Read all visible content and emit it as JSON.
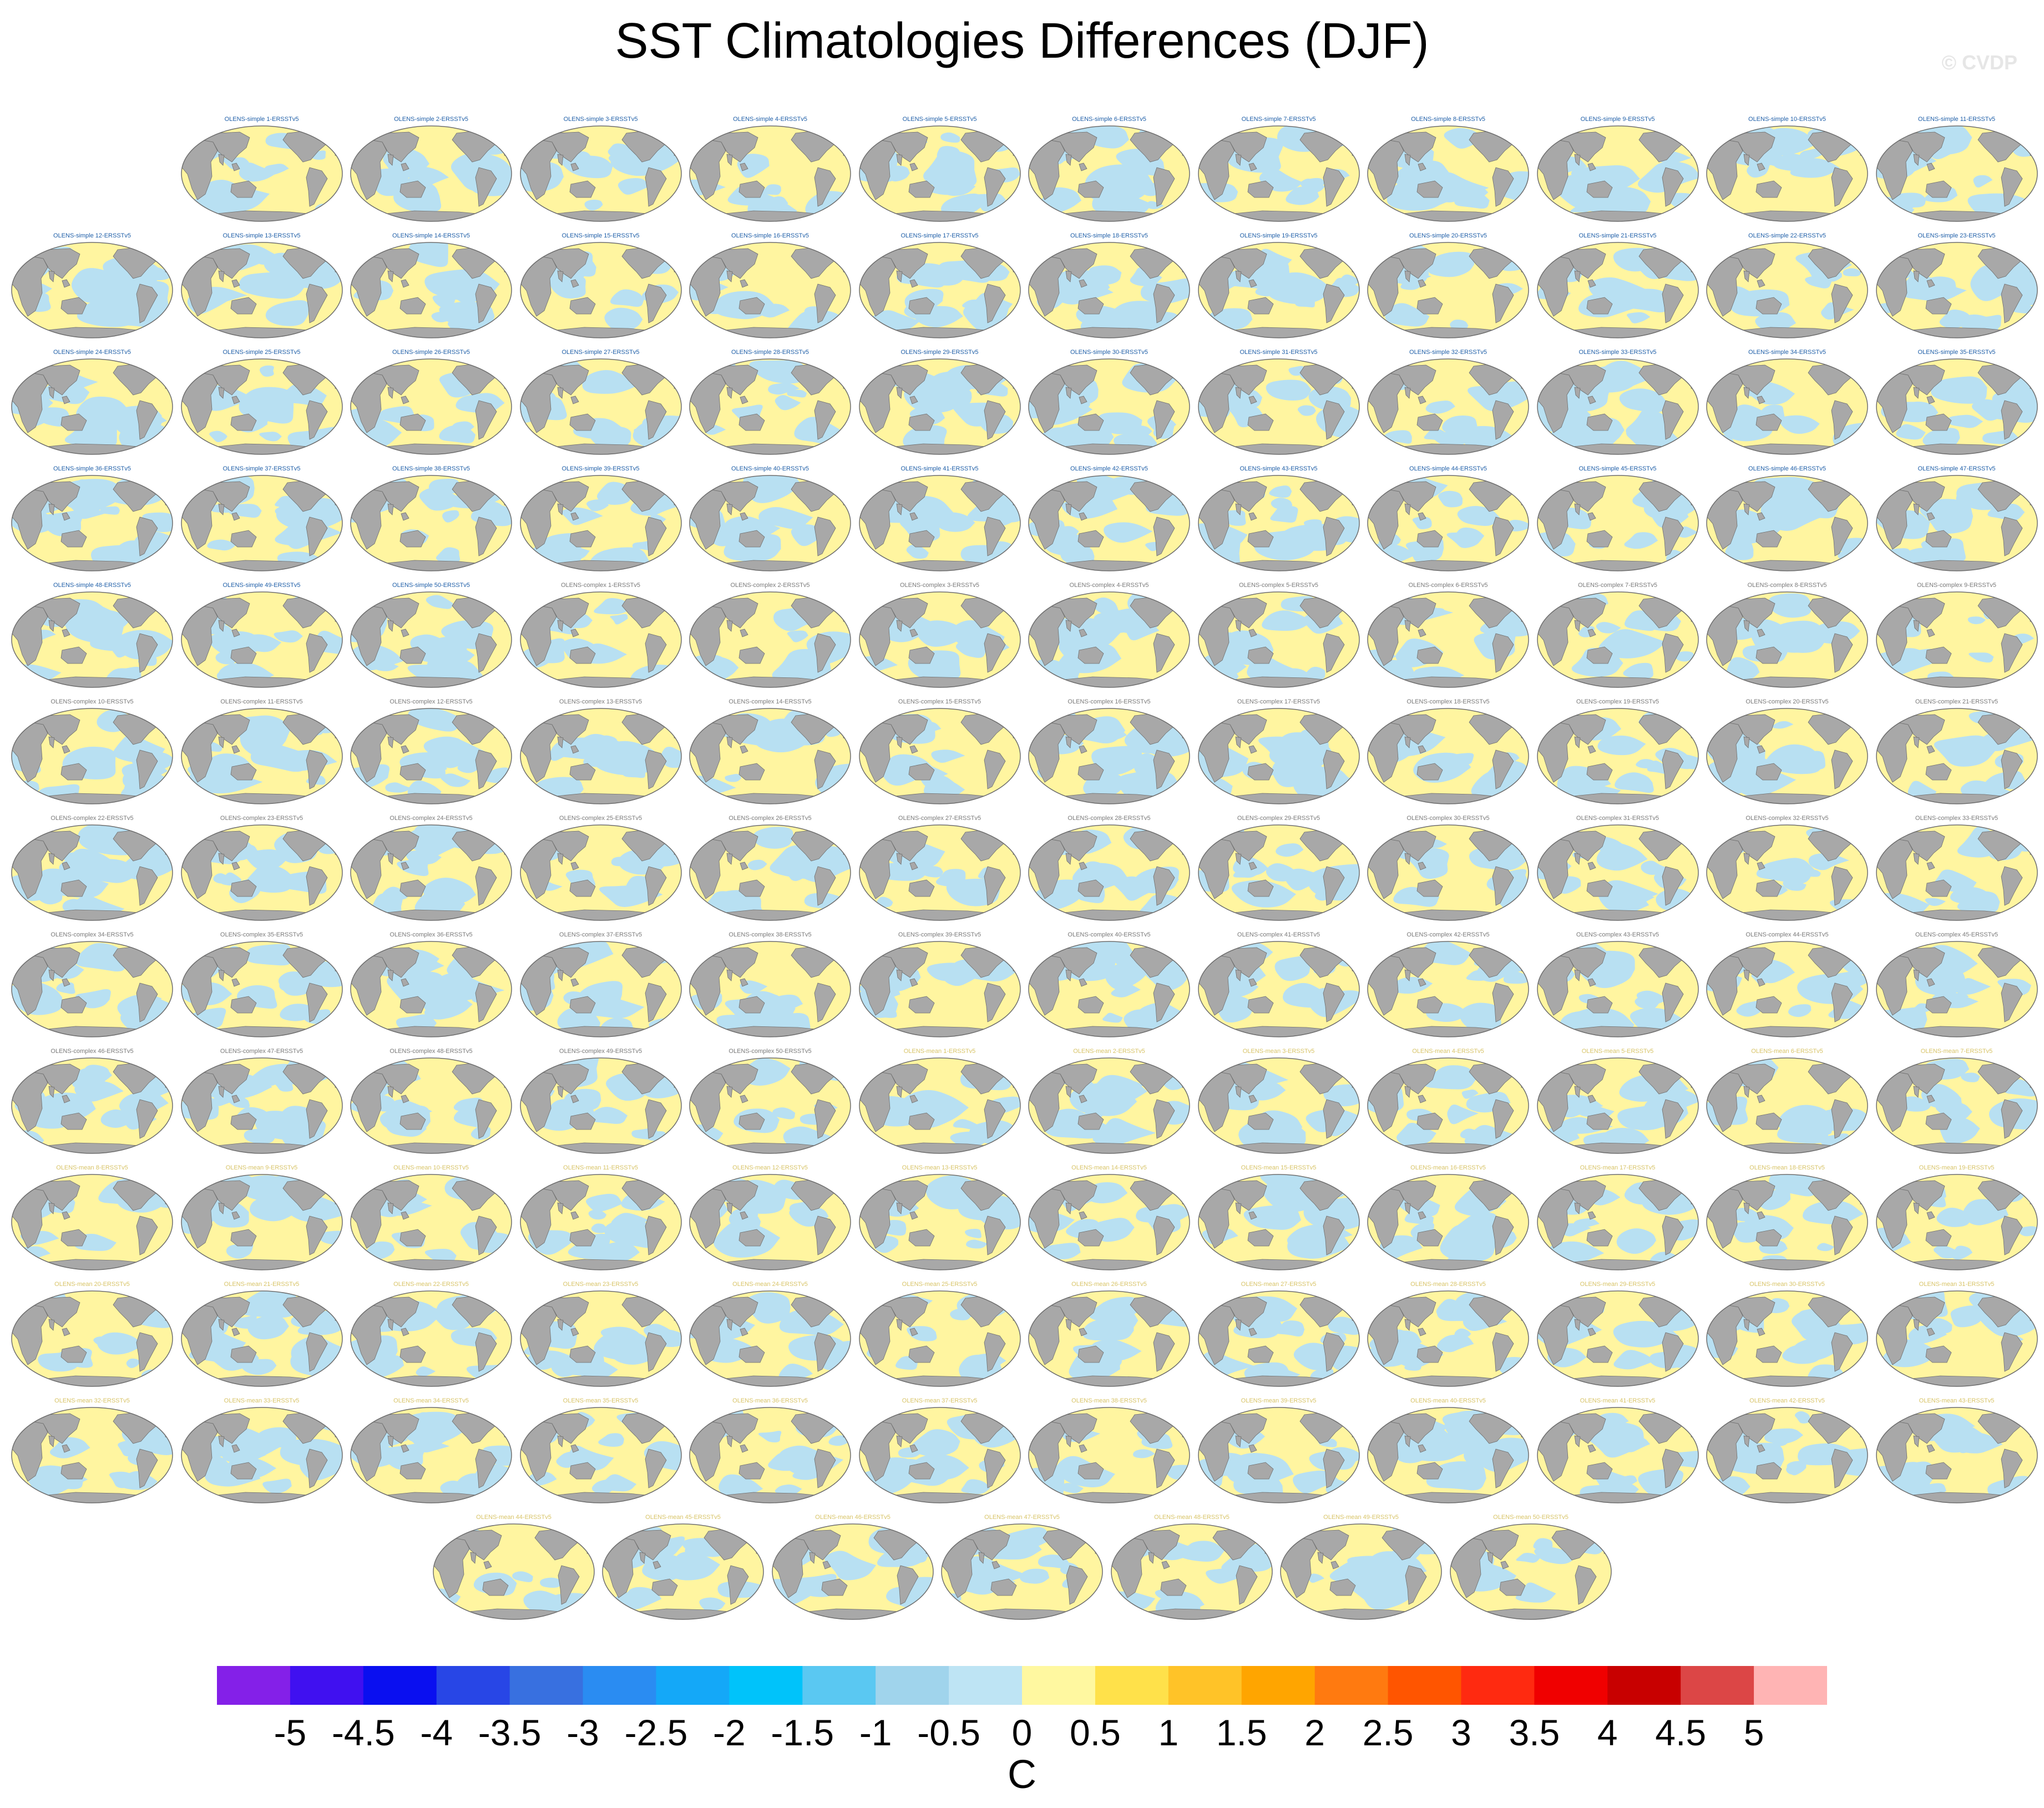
{
  "title": "SST Climatologies Differences (DJF)",
  "watermark": "© CVDP",
  "panels": [
    {
      "label": "OLENS-simple 1-ERSSTv5",
      "group": "simple"
    },
    {
      "label": "OLENS-simple 2-ERSSTv5",
      "group": "simple"
    },
    {
      "label": "OLENS-simple 3-ERSSTv5",
      "group": "simple"
    },
    {
      "label": "OLENS-simple 4-ERSSTv5",
      "group": "simple"
    },
    {
      "label": "OLENS-simple 5-ERSSTv5",
      "group": "simple"
    },
    {
      "label": "OLENS-simple 6-ERSSTv5",
      "group": "simple"
    },
    {
      "label": "OLENS-simple 7-ERSSTv5",
      "group": "simple"
    },
    {
      "label": "OLENS-simple 8-ERSSTv5",
      "group": "simple"
    },
    {
      "label": "OLENS-simple 9-ERSSTv5",
      "group": "simple"
    },
    {
      "label": "OLENS-simple 10-ERSSTv5",
      "group": "simple"
    },
    {
      "label": "OLENS-simple 11-ERSSTv5",
      "group": "simple"
    },
    {
      "label": "OLENS-simple 12-ERSSTv5",
      "group": "simple"
    },
    {
      "label": "OLENS-simple 13-ERSSTv5",
      "group": "simple"
    },
    {
      "label": "OLENS-simple 14-ERSSTv5",
      "group": "simple"
    },
    {
      "label": "OLENS-simple 15-ERSSTv5",
      "group": "simple"
    },
    {
      "label": "OLENS-simple 16-ERSSTv5",
      "group": "simple"
    },
    {
      "label": "OLENS-simple 17-ERSSTv5",
      "group": "simple"
    },
    {
      "label": "OLENS-simple 18-ERSSTv5",
      "group": "simple"
    },
    {
      "label": "OLENS-simple 19-ERSSTv5",
      "group": "simple"
    },
    {
      "label": "OLENS-simple 20-ERSSTv5",
      "group": "simple"
    },
    {
      "label": "OLENS-simple 21-ERSSTv5",
      "group": "simple"
    },
    {
      "label": "OLENS-simple 22-ERSSTv5",
      "group": "simple"
    },
    {
      "label": "OLENS-simple 23-ERSSTv5",
      "group": "simple"
    },
    {
      "label": "OLENS-simple 24-ERSSTv5",
      "group": "simple"
    },
    {
      "label": "OLENS-simple 25-ERSSTv5",
      "group": "simple"
    },
    {
      "label": "OLENS-simple 26-ERSSTv5",
      "group": "simple"
    },
    {
      "label": "OLENS-simple 27-ERSSTv5",
      "group": "simple"
    },
    {
      "label": "OLENS-simple 28-ERSSTv5",
      "group": "simple"
    },
    {
      "label": "OLENS-simple 29-ERSSTv5",
      "group": "simple"
    },
    {
      "label": "OLENS-simple 30-ERSSTv5",
      "group": "simple"
    },
    {
      "label": "OLENS-simple 31-ERSSTv5",
      "group": "simple"
    },
    {
      "label": "OLENS-simple 32-ERSSTv5",
      "group": "simple"
    },
    {
      "label": "OLENS-simple 33-ERSSTv5",
      "group": "simple"
    },
    {
      "label": "OLENS-simple 34-ERSSTv5",
      "group": "simple"
    },
    {
      "label": "OLENS-simple 35-ERSSTv5",
      "group": "simple"
    },
    {
      "label": "OLENS-simple 36-ERSSTv5",
      "group": "simple"
    },
    {
      "label": "OLENS-simple 37-ERSSTv5",
      "group": "simple"
    },
    {
      "label": "OLENS-simple 38-ERSSTv5",
      "group": "simple"
    },
    {
      "label": "OLENS-simple 39-ERSSTv5",
      "group": "simple"
    },
    {
      "label": "OLENS-simple 40-ERSSTv5",
      "group": "simple"
    },
    {
      "label": "OLENS-simple 41-ERSSTv5",
      "group": "simple"
    },
    {
      "label": "OLENS-simple 42-ERSSTv5",
      "group": "simple"
    },
    {
      "label": "OLENS-simple 43-ERSSTv5",
      "group": "simple"
    },
    {
      "label": "OLENS-simple 44-ERSSTv5",
      "group": "simple"
    },
    {
      "label": "OLENS-simple 45-ERSSTv5",
      "group": "simple"
    },
    {
      "label": "OLENS-simple 46-ERSSTv5",
      "group": "simple"
    },
    {
      "label": "OLENS-simple 47-ERSSTv5",
      "group": "simple"
    },
    {
      "label": "OLENS-simple 48-ERSSTv5",
      "group": "simple"
    },
    {
      "label": "OLENS-simple 49-ERSSTv5",
      "group": "simple"
    },
    {
      "label": "OLENS-simple 50-ERSSTv5",
      "group": "simple"
    },
    {
      "label": "OLENS-complex 1-ERSSTv5",
      "group": "complex"
    },
    {
      "label": "OLENS-complex 2-ERSSTv5",
      "group": "complex"
    },
    {
      "label": "OLENS-complex 3-ERSSTv5",
      "group": "complex"
    },
    {
      "label": "OLENS-complex 4-ERSSTv5",
      "group": "complex"
    },
    {
      "label": "OLENS-complex 5-ERSSTv5",
      "group": "complex"
    },
    {
      "label": "OLENS-complex 6-ERSSTv5",
      "group": "complex"
    },
    {
      "label": "OLENS-complex 7-ERSSTv5",
      "group": "complex"
    },
    {
      "label": "OLENS-complex 8-ERSSTv5",
      "group": "complex"
    },
    {
      "label": "OLENS-complex 9-ERSSTv5",
      "group": "complex"
    },
    {
      "label": "OLENS-complex 10-ERSSTv5",
      "group": "complex"
    },
    {
      "label": "OLENS-complex 11-ERSSTv5",
      "group": "complex"
    },
    {
      "label": "OLENS-complex 12-ERSSTv5",
      "group": "complex"
    },
    {
      "label": "OLENS-complex 13-ERSSTv5",
      "group": "complex"
    },
    {
      "label": "OLENS-complex 14-ERSSTv5",
      "group": "complex"
    },
    {
      "label": "OLENS-complex 15-ERSSTv5",
      "group": "complex"
    },
    {
      "label": "OLENS-complex 16-ERSSTv5",
      "group": "complex"
    },
    {
      "label": "OLENS-complex 17-ERSSTv5",
      "group": "complex"
    },
    {
      "label": "OLENS-complex 18-ERSSTv5",
      "group": "complex"
    },
    {
      "label": "OLENS-complex 19-ERSSTv5",
      "group": "complex"
    },
    {
      "label": "OLENS-complex 20-ERSSTv5",
      "group": "complex"
    },
    {
      "label": "OLENS-complex 21-ERSSTv5",
      "group": "complex"
    },
    {
      "label": "OLENS-complex 22-ERSSTv5",
      "group": "complex"
    },
    {
      "label": "OLENS-complex 23-ERSSTv5",
      "group": "complex"
    },
    {
      "label": "OLENS-complex 24-ERSSTv5",
      "group": "complex"
    },
    {
      "label": "OLENS-complex 25-ERSSTv5",
      "group": "complex"
    },
    {
      "label": "OLENS-complex 26-ERSSTv5",
      "group": "complex"
    },
    {
      "label": "OLENS-complex 27-ERSSTv5",
      "group": "complex"
    },
    {
      "label": "OLENS-complex 28-ERSSTv5",
      "group": "complex"
    },
    {
      "label": "OLENS-complex 29-ERSSTv5",
      "group": "complex"
    },
    {
      "label": "OLENS-complex 30-ERSSTv5",
      "group": "complex"
    },
    {
      "label": "OLENS-complex 31-ERSSTv5",
      "group": "complex"
    },
    {
      "label": "OLENS-complex 32-ERSSTv5",
      "group": "complex"
    },
    {
      "label": "OLENS-complex 33-ERSSTv5",
      "group": "complex"
    },
    {
      "label": "OLENS-complex 34-ERSSTv5",
      "group": "complex"
    },
    {
      "label": "OLENS-complex 35-ERSSTv5",
      "group": "complex"
    },
    {
      "label": "OLENS-complex 36-ERSSTv5",
      "group": "complex"
    },
    {
      "label": "OLENS-complex 37-ERSSTv5",
      "group": "complex"
    },
    {
      "label": "OLENS-complex 38-ERSSTv5",
      "group": "complex"
    },
    {
      "label": "OLENS-complex 39-ERSSTv5",
      "group": "complex"
    },
    {
      "label": "OLENS-complex 40-ERSSTv5",
      "group": "complex"
    },
    {
      "label": "OLENS-complex 41-ERSSTv5",
      "group": "complex"
    },
    {
      "label": "OLENS-complex 42-ERSSTv5",
      "group": "complex"
    },
    {
      "label": "OLENS-complex 43-ERSSTv5",
      "group": "complex"
    },
    {
      "label": "OLENS-complex 44-ERSSTv5",
      "group": "complex"
    },
    {
      "label": "OLENS-complex 45-ERSSTv5",
      "group": "complex"
    },
    {
      "label": "OLENS-complex 46-ERSSTv5",
      "group": "complex"
    },
    {
      "label": "OLENS-complex 47-ERSSTv5",
      "group": "complex"
    },
    {
      "label": "OLENS-complex 48-ERSSTv5",
      "group": "complex"
    },
    {
      "label": "OLENS-complex 49-ERSSTv5",
      "group": "complex"
    },
    {
      "label": "OLENS-complex 50-ERSSTv5",
      "group": "complex"
    },
    {
      "label": "OLENS-mean 1-ERSSTv5",
      "group": "mean"
    },
    {
      "label": "OLENS-mean 2-ERSSTv5",
      "group": "mean"
    },
    {
      "label": "OLENS-mean 3-ERSSTv5",
      "group": "mean"
    },
    {
      "label": "OLENS-mean 4-ERSSTv5",
      "group": "mean"
    },
    {
      "label": "OLENS-mean 5-ERSSTv5",
      "group": "mean"
    },
    {
      "label": "OLENS-mean 6-ERSSTv5",
      "group": "mean"
    },
    {
      "label": "OLENS-mean 7-ERSSTv5",
      "group": "mean"
    },
    {
      "label": "OLENS-mean 8-ERSSTv5",
      "group": "mean"
    },
    {
      "label": "OLENS-mean 9-ERSSTv5",
      "group": "mean"
    },
    {
      "label": "OLENS-mean 10-ERSSTv5",
      "group": "mean"
    },
    {
      "label": "OLENS-mean 11-ERSSTv5",
      "group": "mean"
    },
    {
      "label": "OLENS-mean 12-ERSSTv5",
      "group": "mean"
    },
    {
      "label": "OLENS-mean 13-ERSSTv5",
      "group": "mean"
    },
    {
      "label": "OLENS-mean 14-ERSSTv5",
      "group": "mean"
    },
    {
      "label": "OLENS-mean 15-ERSSTv5",
      "group": "mean"
    },
    {
      "label": "OLENS-mean 16-ERSSTv5",
      "group": "mean"
    },
    {
      "label": "OLENS-mean 17-ERSSTv5",
      "group": "mean"
    },
    {
      "label": "OLENS-mean 18-ERSSTv5",
      "group": "mean"
    },
    {
      "label": "OLENS-mean 19-ERSSTv5",
      "group": "mean"
    },
    {
      "label": "OLENS-mean 20-ERSSTv5",
      "group": "mean"
    },
    {
      "label": "OLENS-mean 21-ERSSTv5",
      "group": "mean"
    },
    {
      "label": "OLENS-mean 22-ERSSTv5",
      "group": "mean"
    },
    {
      "label": "OLENS-mean 23-ERSSTv5",
      "group": "mean"
    },
    {
      "label": "OLENS-mean 24-ERSSTv5",
      "group": "mean"
    },
    {
      "label": "OLENS-mean 25-ERSSTv5",
      "group": "mean"
    },
    {
      "label": "OLENS-mean 26-ERSSTv5",
      "group": "mean"
    },
    {
      "label": "OLENS-mean 27-ERSSTv5",
      "group": "mean"
    },
    {
      "label": "OLENS-mean 28-ERSSTv5",
      "group": "mean"
    },
    {
      "label": "OLENS-mean 29-ERSSTv5",
      "group": "mean"
    },
    {
      "label": "OLENS-mean 30-ERSSTv5",
      "group": "mean"
    },
    {
      "label": "OLENS-mean 31-ERSSTv5",
      "group": "mean"
    },
    {
      "label": "OLENS-mean 32-ERSSTv5",
      "group": "mean"
    },
    {
      "label": "OLENS-mean 33-ERSSTv5",
      "group": "mean"
    },
    {
      "label": "OLENS-mean 34-ERSSTv5",
      "group": "mean"
    },
    {
      "label": "OLENS-mean 35-ERSSTv5",
      "group": "mean"
    },
    {
      "label": "OLENS-mean 36-ERSSTv5",
      "group": "mean"
    },
    {
      "label": "OLENS-mean 37-ERSSTv5",
      "group": "mean"
    },
    {
      "label": "OLENS-mean 38-ERSSTv5",
      "group": "mean"
    },
    {
      "label": "OLENS-mean 39-ERSSTv5",
      "group": "mean"
    },
    {
      "label": "OLENS-mean 40-ERSSTv5",
      "group": "mean"
    },
    {
      "label": "OLENS-mean 41-ERSSTv5",
      "group": "mean"
    },
    {
      "label": "OLENS-mean 42-ERSSTv5",
      "group": "mean"
    },
    {
      "label": "OLENS-mean 43-ERSSTv5",
      "group": "mean"
    },
    {
      "label": "OLENS-mean 44-ERSSTv5",
      "group": "mean"
    },
    {
      "label": "OLENS-mean 45-ERSSTv5",
      "group": "mean"
    },
    {
      "label": "OLENS-mean 46-ERSSTv5",
      "group": "mean"
    },
    {
      "label": "OLENS-mean 47-ERSSTv5",
      "group": "mean"
    },
    {
      "label": "OLENS-mean 48-ERSSTv5",
      "group": "mean"
    },
    {
      "label": "OLENS-mean 49-ERSSTv5",
      "group": "mean"
    },
    {
      "label": "OLENS-mean 50-ERSSTv5",
      "group": "mean"
    }
  ],
  "label_colors": {
    "simple": "#1f5fa8",
    "complex": "#7a7a7a",
    "mean": "#d8c468"
  },
  "map_colors": {
    "land": "#a8a8a8",
    "land_edge": "#6e6e6e",
    "warm": "#fff5a0",
    "cool": "#b8e0f2",
    "outline": "#6e6e6e"
  },
  "colorbar": {
    "units": "C",
    "tick_labels": [
      "-5",
      "-4.5",
      "-4",
      "-3.5",
      "-3",
      "-2.5",
      "-2",
      "-1.5",
      "-1",
      "-0.5",
      "0",
      "0.5",
      "1",
      "1.5",
      "2",
      "2.5",
      "3",
      "3.5",
      "4",
      "4.5",
      "5"
    ],
    "colors": [
      "#8420e8",
      "#4010f0",
      "#0a0ff0",
      "#2846e6",
      "#3870e0",
      "#2a8cf2",
      "#14a8f8",
      "#00c3fa",
      "#5ac8f2",
      "#a0d4ec",
      "#bee4f4",
      "#fff8a0",
      "#ffe14a",
      "#ffc328",
      "#ffa500",
      "#ff7a10",
      "#ff5500",
      "#ff2a10",
      "#f00000",
      "#c80000",
      "#dc4646",
      "#ffb4b4"
    ]
  },
  "chart_data": {
    "type": "heatmap",
    "title": "SST Climatologies Differences (DJF)",
    "units": "C",
    "color_levels": [
      -5,
      -4.5,
      -4,
      -3.5,
      -3,
      -2.5,
      -2,
      -1.5,
      -1,
      -0.5,
      0,
      0.5,
      1,
      1.5,
      2,
      2.5,
      3,
      3.5,
      4,
      4.5,
      5
    ],
    "panel_count": 150,
    "projection": "robinson-world",
    "dominant_range": [
      -0.5,
      0.5
    ]
  }
}
